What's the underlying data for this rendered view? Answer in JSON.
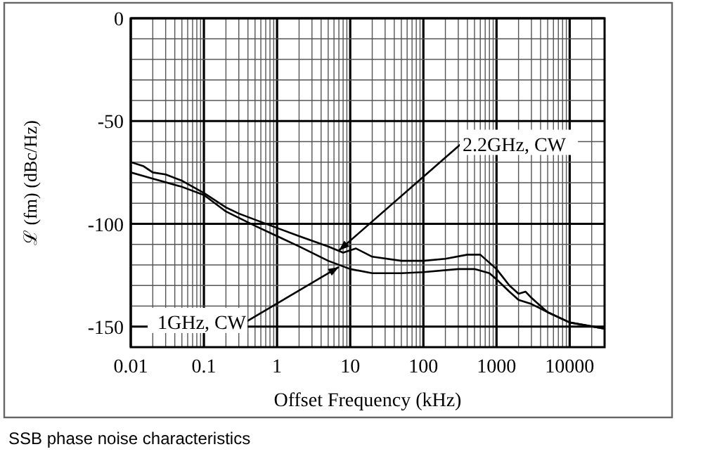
{
  "chart_data": {
    "type": "line",
    "xlabel": "Offset Frequency (kHz)",
    "ylabel": "ℒ (fm) (dBc/Hz)",
    "log": "x",
    "grid": true,
    "marker": "none",
    "line_style": "solid",
    "xlim": [
      0.01,
      30000
    ],
    "ylim": [
      -160,
      0
    ],
    "xticks": [
      0.01,
      {
        "value": 0.02,
        "label": null
      },
      {
        "value": 0.03,
        "label": null
      },
      {
        "value": 0.04,
        "label": null
      },
      {
        "value": 0.05,
        "label": null
      },
      {
        "value": 0.06,
        "label": null
      },
      {
        "value": 0.07,
        "label": null
      },
      {
        "value": 0.08,
        "label": null
      },
      {
        "value": 0.09,
        "label": null
      },
      0.1,
      {
        "value": 0.2,
        "label": null
      },
      {
        "value": 0.3,
        "label": null
      },
      {
        "value": 0.4,
        "label": null
      },
      {
        "value": 0.5,
        "label": null
      },
      {
        "value": 0.6,
        "label": null
      },
      {
        "value": 0.7,
        "label": null
      },
      {
        "value": 0.8,
        "label": null
      },
      {
        "value": 0.9,
        "label": null
      },
      1,
      {
        "value": 2,
        "label": null
      },
      {
        "value": 3,
        "label": null
      },
      {
        "value": 4,
        "label": null
      },
      {
        "value": 5,
        "label": null
      },
      {
        "value": 6,
        "label": null
      },
      {
        "value": 7,
        "label": null
      },
      {
        "value": 8,
        "label": null
      },
      {
        "value": 9,
        "label": null
      },
      10,
      {
        "value": 20,
        "label": null
      },
      {
        "value": 30,
        "label": null
      },
      {
        "value": 40,
        "label": null
      },
      {
        "value": 50,
        "label": null
      },
      {
        "value": 60,
        "label": null
      },
      {
        "value": 70,
        "label": null
      },
      {
        "value": 80,
        "label": null
      },
      {
        "value": 90,
        "label": null
      },
      100,
      {
        "value": 200,
        "label": null
      },
      {
        "value": 300,
        "label": null
      },
      {
        "value": 400,
        "label": null
      },
      {
        "value": 500,
        "label": null
      },
      {
        "value": 600,
        "label": null
      },
      {
        "value": 700,
        "label": null
      },
      {
        "value": 800,
        "label": null
      },
      {
        "value": 900,
        "label": null
      },
      1000,
      {
        "value": 2000,
        "label": null
      },
      {
        "value": 3000,
        "label": null
      },
      {
        "value": 4000,
        "label": null
      },
      {
        "value": 5000,
        "label": null
      },
      {
        "value": 6000,
        "label": null
      },
      {
        "value": 7000,
        "label": null
      },
      {
        "value": 8000,
        "label": null
      },
      {
        "value": 9000,
        "label": null
      },
      10000,
      {
        "value": 20000,
        "label": null
      }
    ],
    "yticks": [
      -150,
      {
        "value": -140,
        "label": null
      },
      {
        "value": -130,
        "label": null
      },
      {
        "value": -120,
        "label": null
      },
      {
        "value": -110,
        "label": null
      },
      -100,
      {
        "value": -90,
        "label": null
      },
      {
        "value": -80,
        "label": null
      },
      {
        "value": -70,
        "label": null
      },
      {
        "value": -60,
        "label": null
      },
      -50,
      {
        "value": -40,
        "label": null
      },
      {
        "value": -30,
        "label": null
      },
      {
        "value": -20,
        "label": null
      },
      {
        "value": -10,
        "label": null
      },
      0
    ],
    "series": [
      {
        "color": "#000000",
        "x": [
          0.01,
          0.015,
          0.02,
          0.03,
          0.05,
          0.1,
          0.2,
          0.3,
          0.5,
          1,
          2,
          5,
          8,
          12,
          20,
          50,
          100,
          200,
          400,
          600,
          1000,
          1500,
          2000,
          2500,
          3000,
          5000,
          10000,
          30000
        ],
        "values": [
          -70,
          -72,
          -75,
          -76,
          -79,
          -85,
          -92,
          -95,
          -98,
          -102,
          -106,
          -111,
          -114,
          -112,
          -116,
          -118,
          -118,
          -117,
          -115,
          -115,
          -122,
          -130,
          -134,
          -133,
          -136,
          -143,
          -148,
          -151
        ]
      },
      {
        "color": "#000000",
        "x": [
          0.01,
          0.02,
          0.05,
          0.1,
          0.2,
          0.5,
          1,
          2,
          5,
          10,
          20,
          50,
          100,
          300,
          500,
          800,
          1000,
          1500,
          2000,
          3000,
          5000,
          10000,
          30000
        ],
        "values": [
          -75,
          -78,
          -82,
          -86,
          -94,
          -101,
          -106,
          -111,
          -118,
          -122,
          -124,
          -124,
          -123.5,
          -122,
          -122,
          -124,
          -127,
          -133,
          -137,
          -139,
          -143,
          -148,
          -151
        ]
      }
    ],
    "annotations": [
      {
        "text": "2.2GHz, CW",
        "x": 7,
        "y": -113
      },
      {
        "text": "1GHz, CW",
        "x": 7,
        "y": -121
      },
      "SSB phase noise characteristics"
    ]
  }
}
